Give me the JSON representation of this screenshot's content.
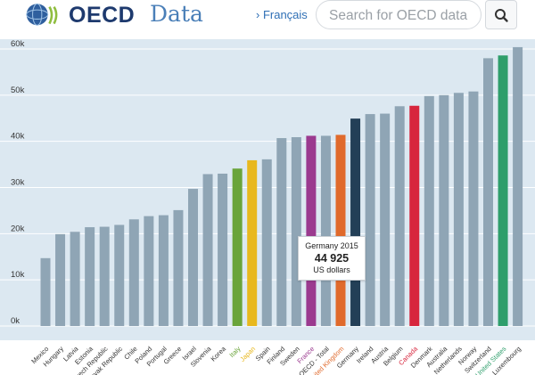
{
  "header": {
    "logo_text": "OECD",
    "title": "Data",
    "lang_link": "› Français",
    "search_placeholder": "Search for OECD data"
  },
  "tooltip": {
    "title": "Germany 2015",
    "value": "44 925",
    "unit": "US dollars"
  },
  "colors": {
    "default": "#8fa5b5",
    "Italy": "#6aa43a",
    "Japan": "#e8b81e",
    "France": "#9b3a8f",
    "Germany": "#233f57",
    "United Kingdom": "#e06a2c",
    "Canada": "#d7263d",
    "United States": "#2e9e6b"
  },
  "chart_data": {
    "type": "bar",
    "title": "",
    "xlabel": "",
    "ylabel": "US dollars",
    "ylim": [
      0,
      60000
    ],
    "y_ticks": [
      "0k",
      "10k",
      "20k",
      "30k",
      "40k",
      "50k",
      "60k"
    ],
    "y_tick_values": [
      0,
      10000,
      20000,
      30000,
      40000,
      50000,
      60000
    ],
    "categories": [
      "Mexico",
      "Hungary",
      "Latvia",
      "Estonia",
      "Czech Republic",
      "Slovak Republic",
      "Chile",
      "Poland",
      "Portugal",
      "Greece",
      "Israel",
      "Slovenia",
      "Korea",
      "Italy",
      "Japan",
      "Spain",
      "Finland",
      "Sweden",
      "France",
      "OECD - Total",
      "United Kingdom",
      "Germany",
      "Ireland",
      "Austria",
      "Belgium",
      "Canada",
      "Denmark",
      "Australia",
      "Netherlands",
      "Norway",
      "Switzerland",
      "United States",
      "Luxembourg"
    ],
    "values": [
      14700,
      19900,
      20400,
      21400,
      21500,
      21900,
      23100,
      23800,
      24000,
      25100,
      29700,
      32900,
      33000,
      34100,
      35900,
      36100,
      40700,
      40900,
      41200,
      41200,
      41400,
      44925,
      45900,
      46000,
      47600,
      47700,
      49800,
      50000,
      50500,
      50800,
      58000,
      58600,
      60400
    ]
  }
}
